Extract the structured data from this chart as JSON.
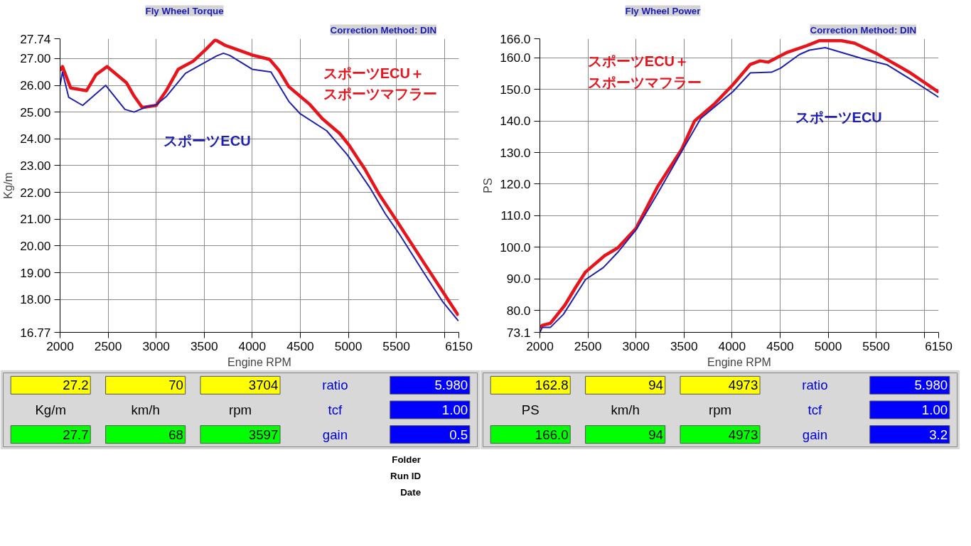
{
  "chart_data": [
    {
      "type": "line",
      "title": "Fly Wheel Torque",
      "subtitle": "Correction Method: DIN",
      "xlabel": "Engine RPM",
      "ylabel": "Kg/m",
      "xlim": [
        2000,
        6150
      ],
      "ylim": [
        16.77,
        27.74
      ],
      "xticks": [
        2000,
        2500,
        3000,
        3500,
        4000,
        4500,
        5000,
        5500,
        {
          "value": 6000,
          "label": null
        },
        6150
      ],
      "yticks": [
        {
          "value": 16.77,
          "label": "16.77"
        },
        {
          "value": 18,
          "label": "18.00"
        },
        {
          "value": 19,
          "label": "19.00"
        },
        {
          "value": 20,
          "label": "20.00"
        },
        {
          "value": 21,
          "label": "21.00"
        },
        {
          "value": 22,
          "label": "22.00"
        },
        {
          "value": 23,
          "label": "23.00"
        },
        {
          "value": 24,
          "label": "24.00"
        },
        {
          "value": 25,
          "label": "25.00"
        },
        {
          "value": 26,
          "label": "26.00"
        },
        {
          "value": 27,
          "label": "27.00"
        },
        {
          "value": 27.74,
          "label": "27.74"
        }
      ],
      "grid": true,
      "legend": false,
      "marker": "none",
      "line_style": "solid",
      "series": [
        {
          "name": "スポーツECU＋スポーツマフラー",
          "color": "#e8141c",
          "x": [
            2000,
            2025,
            2110,
            2275,
            2375,
            2490,
            2690,
            2770,
            2855,
            3000,
            3105,
            3230,
            3385,
            3520,
            3615,
            3715,
            3830,
            4000,
            4180,
            4280,
            4380,
            4495,
            4595,
            4730,
            4910,
            5010,
            5175,
            5325,
            5510,
            5790,
            5990,
            6145
          ],
          "values": [
            26.55,
            26.7,
            25.9,
            25.8,
            26.4,
            26.7,
            26.1,
            25.6,
            25.17,
            25.25,
            25.8,
            26.6,
            26.9,
            27.35,
            27.7,
            27.5,
            27.35,
            27.13,
            26.97,
            26.55,
            25.95,
            25.6,
            25.3,
            24.75,
            24.2,
            23.75,
            22.85,
            21.9,
            20.9,
            19.35,
            18.25,
            17.4
          ]
        },
        {
          "name": "スポーツECU",
          "color": "#2020b0",
          "x": [
            2000,
            2025,
            2090,
            2235,
            2475,
            2675,
            2770,
            2900,
            3000,
            3105,
            3305,
            3500,
            3630,
            3700,
            3765,
            4000,
            4195,
            4380,
            4495,
            4775,
            4990,
            5220,
            5385,
            5520,
            5785,
            5985,
            6145
          ],
          "values": [
            26.0,
            26.5,
            25.55,
            25.25,
            26.0,
            25.1,
            25.0,
            25.2,
            25.27,
            25.58,
            26.45,
            26.84,
            27.1,
            27.2,
            27.12,
            26.6,
            26.5,
            25.4,
            24.95,
            24.3,
            23.4,
            22.2,
            21.2,
            20.5,
            19.0,
            17.9,
            17.2
          ]
        }
      ],
      "annotations": [
        "27.2",
        "70",
        "3704",
        "ratio",
        "5.980",
        "Kg/m",
        "km/h",
        "rpm",
        "tcf",
        "1.00",
        "27.7",
        "68",
        "3597",
        "gain",
        "0.5"
      ]
    },
    {
      "type": "line",
      "title": "Fly Wheel Power",
      "subtitle": "Correction Method: DIN",
      "xlabel": "Engine RPM",
      "ylabel": "PS",
      "xlim": [
        2000,
        6150
      ],
      "ylim": [
        73.1,
        166.0
      ],
      "xticks": [
        2000,
        2500,
        3000,
        3500,
        4000,
        4500,
        5000,
        5500,
        {
          "value": 6000,
          "label": null
        },
        6150
      ],
      "yticks": [
        {
          "value": 73.1,
          "label": "73.1"
        },
        {
          "value": 80,
          "label": "80.0"
        },
        {
          "value": 90,
          "label": "90.0"
        },
        {
          "value": 100,
          "label": "100.0"
        },
        {
          "value": 110,
          "label": "110.0"
        },
        {
          "value": 120,
          "label": "120.0"
        },
        {
          "value": 130,
          "label": "130.0"
        },
        {
          "value": 140,
          "label": "140.0"
        },
        {
          "value": 150,
          "label": "150.0"
        },
        {
          "value": 160,
          "label": "160.0"
        },
        {
          "value": 166,
          "label": "166.0"
        }
      ],
      "grid": true,
      "legend": false,
      "marker": "none",
      "line_style": "solid",
      "series": [
        {
          "name": "スポーツECU＋スポーツマフラー",
          "color": "#e8141c",
          "x": [
            2000,
            2025,
            2110,
            2260,
            2375,
            2475,
            2675,
            2810,
            3000,
            3225,
            3475,
            3610,
            3810,
            4010,
            4190,
            4290,
            4375,
            4575,
            4775,
            4910,
            5140,
            5275,
            5510,
            5840,
            6150
          ],
          "values": [
            74.5,
            75.3,
            76.0,
            81.7,
            87.5,
            92.2,
            97.4,
            99.8,
            106.0,
            119.2,
            131.0,
            140.0,
            145.2,
            151.5,
            157.9,
            159.0,
            158.6,
            161.7,
            163.8,
            165.4,
            165.4,
            164.6,
            161.2,
            155.5,
            149.1
          ]
        },
        {
          "name": "スポーツECU",
          "color": "#2020b0",
          "x": [
            2000,
            2025,
            2110,
            2245,
            2475,
            2660,
            2810,
            3000,
            3240,
            3475,
            3675,
            3840,
            4010,
            4190,
            4410,
            4505,
            4700,
            4805,
            4970,
            5170,
            5370,
            5610,
            5910,
            6150
          ],
          "values": [
            73.1,
            74.7,
            74.7,
            78.8,
            89.8,
            93.6,
            98.4,
            105.5,
            117.8,
            130.3,
            140.8,
            145.0,
            149.3,
            155.2,
            155.4,
            156.7,
            161.0,
            162.4,
            163.2,
            161.4,
            159.6,
            157.8,
            152.2,
            147.5
          ]
        }
      ],
      "annotations": [
        "162.8",
        "94",
        "4973",
        "ratio",
        "5.980",
        "PS",
        "km/h",
        "rpm",
        "tcf",
        "1.00",
        "166.0",
        "94",
        "4973",
        "gain",
        "3.2",
        "Folder",
        "Run ID",
        "Date"
      ]
    }
  ]
}
